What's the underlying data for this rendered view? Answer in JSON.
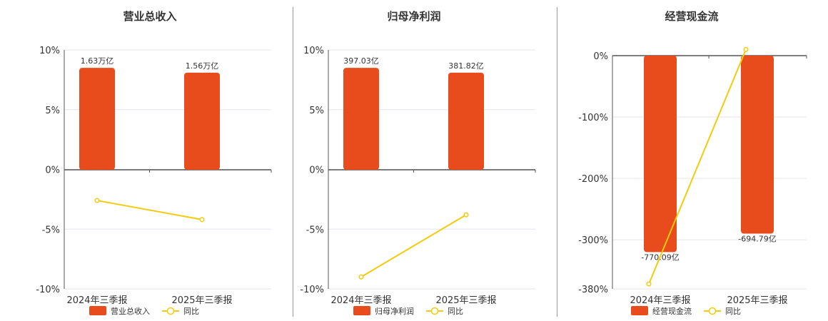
{
  "colors": {
    "bar": "#E84C1C",
    "line": "#F2CC0C",
    "grid": "#E6E6EE",
    "axis": "#555555"
  },
  "legend": {
    "line_label": "同比"
  },
  "chart_data": [
    {
      "type": "bar",
      "title": "营业总收入",
      "categories": [
        "2024年三季报",
        "2025年三季报"
      ],
      "series": [
        {
          "name": "营业总收入",
          "type": "bar",
          "values": [
            8.5,
            8.1
          ],
          "labels": [
            "1.63万亿",
            "1.56万亿"
          ]
        },
        {
          "name": "同比",
          "type": "line",
          "values": [
            -2.6,
            -4.2
          ]
        }
      ],
      "yaxis": {
        "ticks": [
          10,
          5,
          0,
          -5,
          -10
        ],
        "tick_labels": [
          "10%",
          "5%",
          "0%",
          "-5%",
          "-10%"
        ],
        "ylim": [
          -10,
          10
        ],
        "scale": "linear"
      },
      "grid": true,
      "legend_position": "bottom"
    },
    {
      "type": "bar",
      "title": "归母净利润",
      "categories": [
        "2024年三季报",
        "2025年三季报"
      ],
      "series": [
        {
          "name": "归母净利润",
          "type": "bar",
          "values": [
            8.5,
            8.1
          ],
          "labels": [
            "397.03亿",
            "381.82亿"
          ]
        },
        {
          "name": "同比",
          "type": "line",
          "values": [
            -9.0,
            -3.8
          ]
        }
      ],
      "yaxis": {
        "ticks": [
          10,
          5,
          0,
          -5,
          -10
        ],
        "tick_labels": [
          "10%",
          "5%",
          "0%",
          "-5%",
          "-10%"
        ],
        "ylim": [
          -10,
          10
        ],
        "scale": "linear"
      },
      "grid": true,
      "legend_position": "bottom"
    },
    {
      "type": "bar",
      "title": "经营现金流",
      "categories": [
        "2024年三季报",
        "2025年三季报"
      ],
      "series": [
        {
          "name": "经营现金流",
          "type": "bar",
          "values": [
            -320,
            -290
          ],
          "labels": [
            "-770.09亿",
            "-694.79亿"
          ]
        },
        {
          "name": "同比",
          "type": "line",
          "values": [
            -372,
            10
          ]
        }
      ],
      "yaxis": {
        "ticks": [
          0,
          -100,
          -200,
          -300,
          -380
        ],
        "tick_labels": [
          "0%",
          "-100%",
          "-200%",
          "-300%",
          "-380%"
        ],
        "ylim": [
          -380,
          0
        ],
        "scale": "linear"
      },
      "grid": true,
      "legend_position": "bottom"
    }
  ]
}
